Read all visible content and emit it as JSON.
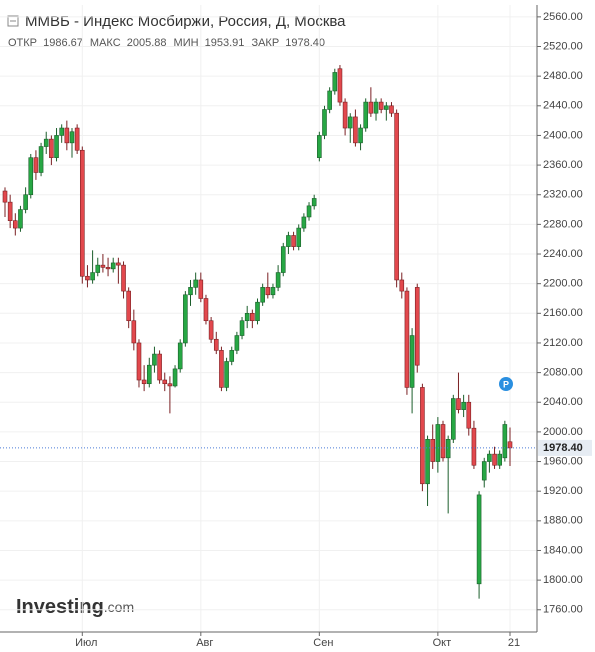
{
  "chart_data": {
    "type": "candlestick",
    "title": "ММВБ - Индекс Мосбиржи, Россия, Д, Москва",
    "open_label": "ОТКР",
    "high_label": "МАКС",
    "low_label": "МИН",
    "close_label": "ЗАКР",
    "value_labels": {
      "open": "1986.67",
      "high": "2005.88",
      "low": "1953.91",
      "close": "1978.40"
    },
    "badge": "P",
    "watermark": "Investing",
    "watermark_suffix": ".com",
    "up_color": "#27a744",
    "down_color": "#e2484d",
    "categories": [
      null,
      null,
      null,
      null,
      null,
      null,
      null,
      null,
      null,
      null,
      null,
      null,
      null,
      null,
      null,
      "Июл",
      null,
      null,
      null,
      null,
      null,
      null,
      null,
      null,
      null,
      null,
      null,
      null,
      null,
      null,
      null,
      null,
      null,
      null,
      null,
      null,
      null,
      null,
      "Авг",
      null,
      null,
      null,
      null,
      null,
      null,
      null,
      null,
      null,
      null,
      null,
      null,
      null,
      null,
      null,
      null,
      null,
      null,
      null,
      null,
      null,
      null,
      "Сен",
      null,
      null,
      null,
      null,
      null,
      null,
      null,
      null,
      null,
      null,
      null,
      null,
      null,
      null,
      null,
      null,
      null,
      null,
      null,
      null,
      null,
      null,
      "Окт",
      null,
      null,
      null,
      null,
      null,
      null,
      null,
      null,
      null,
      null,
      null,
      null,
      null,
      "21"
    ],
    "open": [
      2325,
      2310,
      2285,
      2275,
      2300,
      2320,
      2370,
      2350,
      2385,
      2395,
      2370,
      2400,
      2410,
      2390,
      2410,
      2380,
      2210,
      2205,
      2215,
      2225,
      2222,
      2220,
      2228,
      2225,
      2190,
      2150,
      2120,
      2070,
      2065,
      2090,
      2105,
      2070,
      2065,
      2062,
      2085,
      2120,
      2185,
      2195,
      2205,
      2180,
      2150,
      2125,
      2110,
      2060,
      2095,
      2110,
      2130,
      2150,
      2160,
      2150,
      2175,
      2195,
      2185,
      2195,
      2215,
      2250,
      2265,
      2250,
      2275,
      2290,
      2305,
      2370,
      2400,
      2435,
      2460,
      2490,
      2445,
      2410,
      2425,
      2390,
      2410,
      2445,
      2430,
      2445,
      2435,
      2440,
      2430,
      2205,
      2190,
      2060,
      2195,
      2060,
      1930,
      1990,
      1960,
      2010,
      1965,
      1990,
      2045,
      2030,
      2040,
      2005,
      1795,
      1935,
      1960,
      1970,
      1955,
      1965,
      1986.67
    ],
    "high": [
      2330,
      2320,
      2295,
      2305,
      2330,
      2375,
      2380,
      2390,
      2405,
      2400,
      2410,
      2415,
      2420,
      2410,
      2415,
      2385,
      2225,
      2245,
      2235,
      2240,
      2235,
      2235,
      2235,
      2230,
      2195,
      2165,
      2125,
      2090,
      2100,
      2115,
      2110,
      2080,
      2075,
      2090,
      2125,
      2190,
      2205,
      2215,
      2215,
      2185,
      2155,
      2135,
      2115,
      2100,
      2115,
      2135,
      2155,
      2170,
      2165,
      2180,
      2200,
      2215,
      2200,
      2225,
      2255,
      2270,
      2270,
      2280,
      2295,
      2310,
      2320,
      2405,
      2440,
      2465,
      2490,
      2495,
      2450,
      2430,
      2435,
      2415,
      2450,
      2465,
      2450,
      2450,
      2445,
      2445,
      2435,
      2215,
      2195,
      2140,
      2200,
      2065,
      1995,
      2010,
      2020,
      2015,
      1995,
      2050,
      2080,
      2050,
      2050,
      2015,
      1920,
      1965,
      1975,
      1980,
      1975,
      2015,
      2005.88
    ],
    "low": [
      2290,
      2275,
      2265,
      2270,
      2295,
      2315,
      2340,
      2345,
      2375,
      2360,
      2365,
      2390,
      2380,
      2370,
      2375,
      2200,
      2195,
      2200,
      2210,
      2215,
      2210,
      2215,
      2200,
      2180,
      2140,
      2110,
      2060,
      2055,
      2060,
      2080,
      2065,
      2055,
      2025,
      2060,
      2080,
      2115,
      2170,
      2185,
      2175,
      2145,
      2120,
      2105,
      2055,
      2055,
      2090,
      2105,
      2125,
      2140,
      2140,
      2145,
      2170,
      2180,
      2180,
      2190,
      2210,
      2240,
      2245,
      2245,
      2270,
      2285,
      2300,
      2365,
      2395,
      2430,
      2455,
      2440,
      2400,
      2390,
      2385,
      2380,
      2405,
      2425,
      2420,
      2430,
      2420,
      2425,
      2195,
      2180,
      2050,
      2025,
      2080,
      1920,
      1900,
      1950,
      1945,
      1960,
      1890,
      1985,
      2025,
      2020,
      1995,
      1950,
      1775,
      1925,
      1945,
      1950,
      1950,
      1960,
      1953.91
    ],
    "close": [
      2310,
      2285,
      2275,
      2300,
      2320,
      2370,
      2350,
      2385,
      2395,
      2370,
      2400,
      2410,
      2390,
      2405,
      2380,
      2210,
      2205,
      2215,
      2225,
      2222,
      2220,
      2228,
      2225,
      2190,
      2150,
      2120,
      2070,
      2065,
      2090,
      2105,
      2070,
      2065,
      2062,
      2085,
      2120,
      2185,
      2195,
      2205,
      2180,
      2150,
      2125,
      2110,
      2060,
      2095,
      2110,
      2130,
      2150,
      2160,
      2150,
      2175,
      2195,
      2185,
      2195,
      2215,
      2250,
      2265,
      2250,
      2275,
      2290,
      2305,
      2315,
      2400,
      2435,
      2460,
      2485,
      2445,
      2410,
      2425,
      2390,
      2410,
      2445,
      2430,
      2445,
      2435,
      2440,
      2430,
      2205,
      2190,
      2060,
      2130,
      2090,
      1930,
      1990,
      1960,
      2010,
      1965,
      1990,
      2045,
      2030,
      2040,
      2005,
      1955,
      1915,
      1960,
      1970,
      1955,
      1970,
      2010,
      1978.4
    ],
    "ylim": [
      1730,
      2576
    ],
    "yticks": [
      {
        "value": 2560,
        "label": "2560.00"
      },
      {
        "value": 2520,
        "label": "2520.00"
      },
      {
        "value": 2480,
        "label": "2480.00"
      },
      {
        "value": 2440,
        "label": "2440.00"
      },
      {
        "value": 2400,
        "label": "2400.00"
      },
      {
        "value": 2360,
        "label": "2360.00"
      },
      {
        "value": 2320,
        "label": "2320.00"
      },
      {
        "value": 2280,
        "label": "2280.00"
      },
      {
        "value": 2240,
        "label": "2240.00"
      },
      {
        "value": 2200,
        "label": "2200.00"
      },
      {
        "value": 2160,
        "label": "2160.00"
      },
      {
        "value": 2120,
        "label": "2120.00"
      },
      {
        "value": 2080,
        "label": "2080.00"
      },
      {
        "value": 2040,
        "label": "2040.00"
      },
      {
        "value": 2000,
        "label": "2000.00"
      },
      {
        "value": 1960,
        "label": "1960.00"
      },
      {
        "value": 1920,
        "label": "1920.00"
      },
      {
        "value": 1880,
        "label": "1880.00"
      },
      {
        "value": 1840,
        "label": "1840.00"
      },
      {
        "value": 1800,
        "label": "1800.00"
      },
      {
        "value": 1760,
        "label": "1760.00"
      }
    ]
  }
}
